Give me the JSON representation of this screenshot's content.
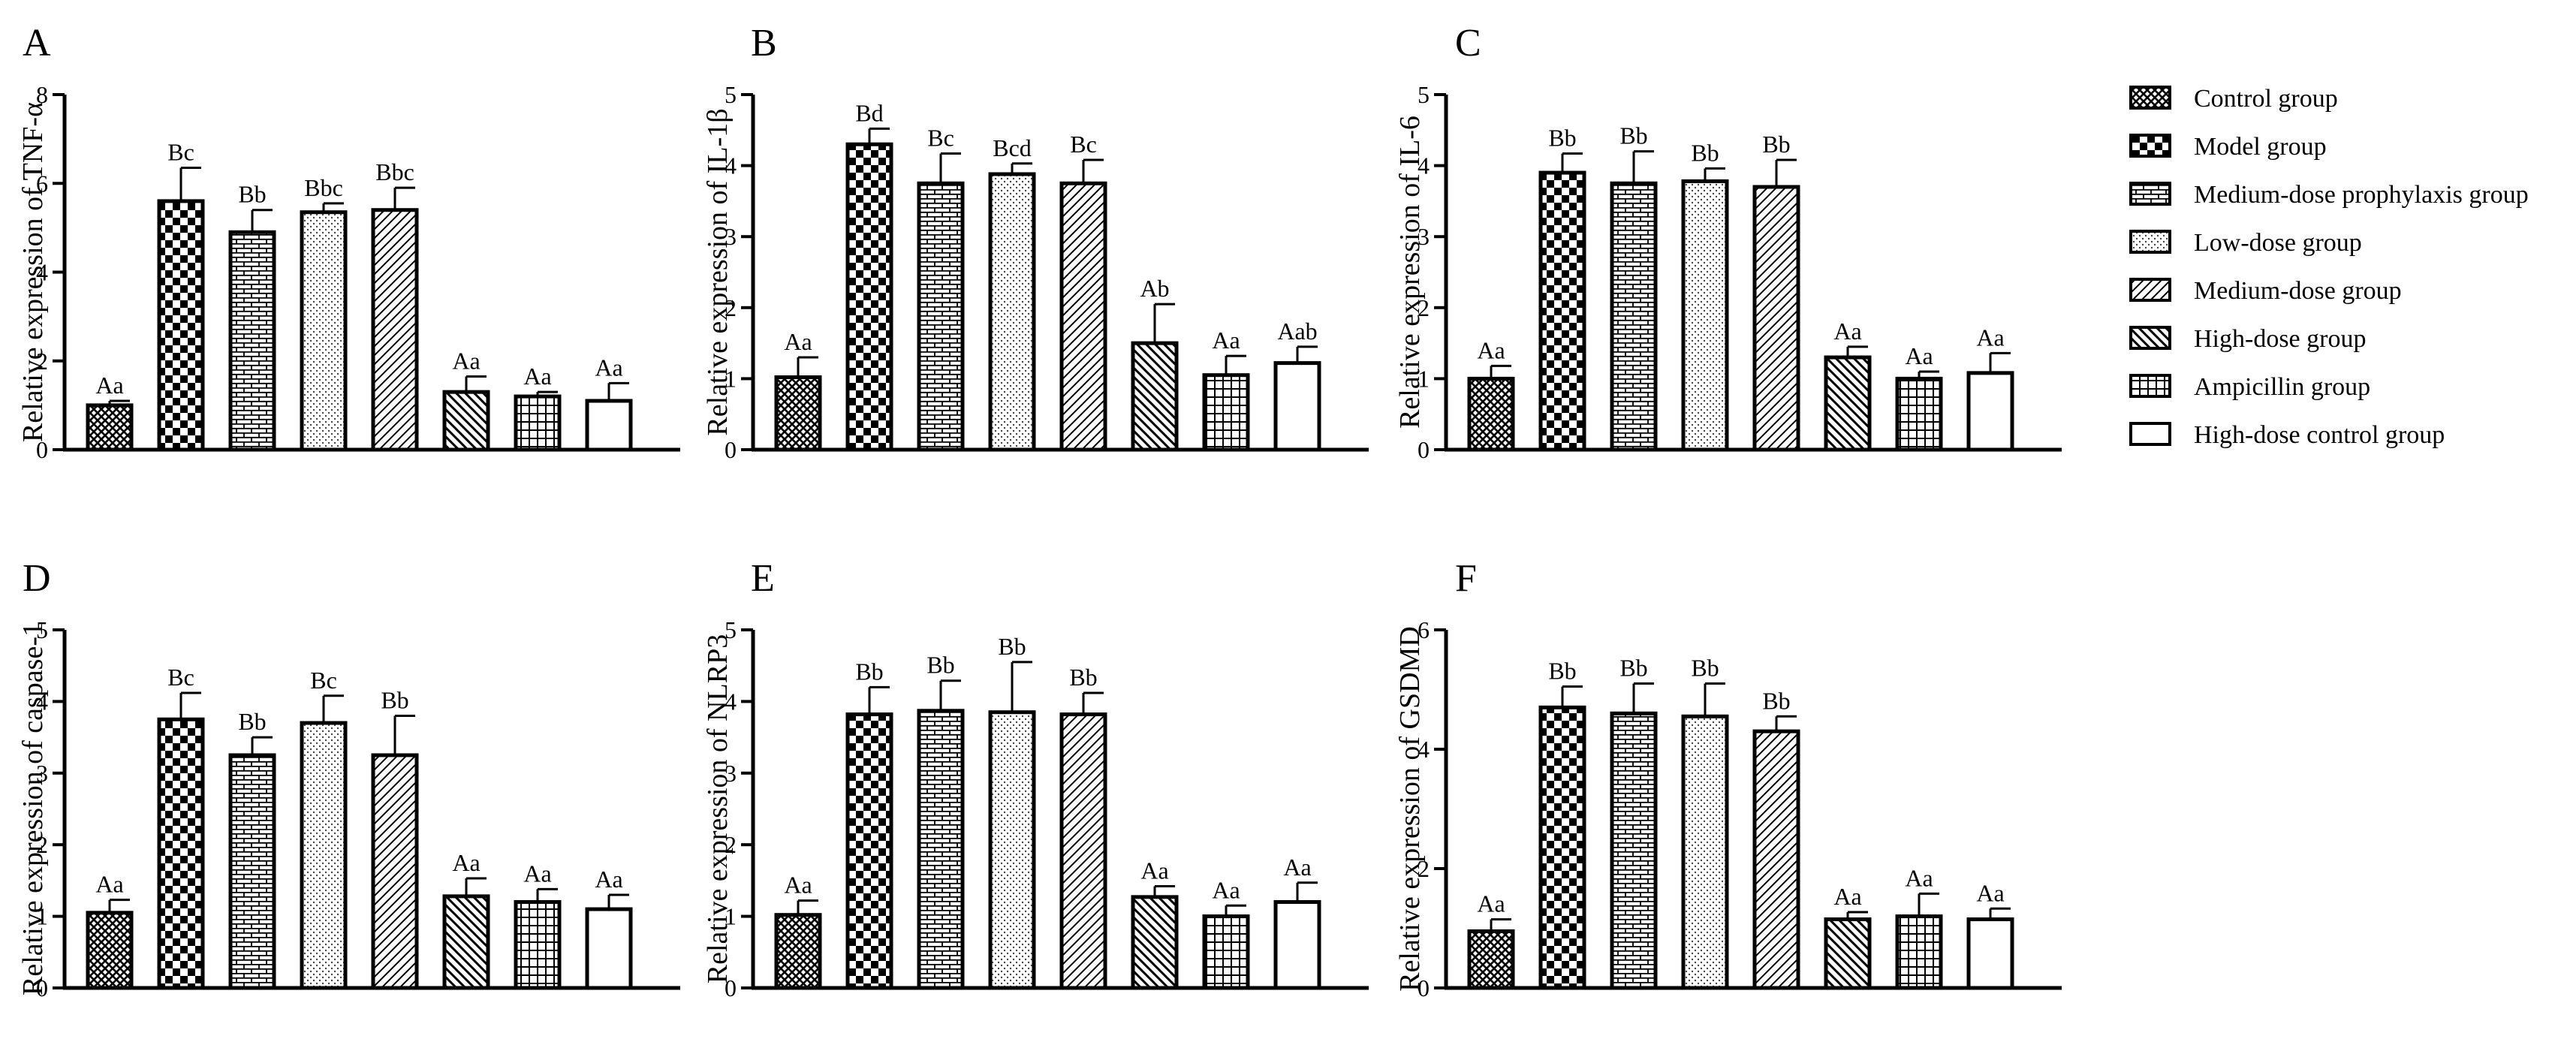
{
  "figure": {
    "legend": {
      "entries": [
        {
          "label": "Control group",
          "pattern": "crosshatch-fine"
        },
        {
          "label": "Model group",
          "pattern": "checker"
        },
        {
          "label": "Medium-dose prophylaxis group",
          "pattern": "brick"
        },
        {
          "label": "Low-dose group",
          "pattern": "dots"
        },
        {
          "label": "Medium-dose group",
          "pattern": "diag-fwd"
        },
        {
          "label": "High-dose group",
          "pattern": "diag-back"
        },
        {
          "label": "Ampicillin group",
          "pattern": "grid"
        },
        {
          "label": "High-dose control group",
          "pattern": "empty"
        }
      ]
    }
  },
  "chart_data": [
    {
      "panel": "A",
      "type": "bar",
      "ylabel": "Relative expression of TNF-α",
      "ylim": [
        0,
        8
      ],
      "yticks": [
        0,
        2,
        4,
        6,
        8
      ],
      "categories": [
        "Control group",
        "Model group",
        "Medium-dose prophylaxis group",
        "Low-dose group",
        "Medium-dose group",
        "High-dose group",
        "Ampicillin group",
        "High-dose control group"
      ],
      "values": [
        1.0,
        5.6,
        4.9,
        5.35,
        5.4,
        1.3,
        1.2,
        1.1
      ],
      "errors": [
        0.1,
        0.75,
        0.5,
        0.2,
        0.5,
        0.35,
        0.1,
        0.4
      ],
      "labels": [
        "Aa",
        "Bc",
        "Bb",
        "Bbc",
        "Bbc",
        "Aa",
        "Aa",
        "Aa"
      ]
    },
    {
      "panel": "B",
      "type": "bar",
      "ylabel": "Relative expression of IL-1β",
      "ylim": [
        0,
        5
      ],
      "yticks": [
        0,
        1,
        2,
        3,
        4,
        5
      ],
      "categories": [
        "Control group",
        "Model group",
        "Medium-dose prophylaxis group",
        "Low-dose group",
        "Medium-dose group",
        "High-dose group",
        "Ampicillin group",
        "High-dose control group"
      ],
      "values": [
        1.02,
        4.3,
        3.75,
        3.88,
        3.75,
        1.5,
        1.05,
        1.22
      ],
      "errors": [
        0.28,
        0.22,
        0.42,
        0.15,
        0.33,
        0.55,
        0.27,
        0.23
      ],
      "labels": [
        "Aa",
        "Bd",
        "Bc",
        "Bcd",
        "Bc",
        "Ab",
        "Aa",
        "Aab"
      ]
    },
    {
      "panel": "C",
      "type": "bar",
      "ylabel": "Relative expression of IL-6",
      "ylim": [
        0,
        5
      ],
      "yticks": [
        0,
        1,
        2,
        3,
        4,
        5
      ],
      "categories": [
        "Control group",
        "Model group",
        "Medium-dose prophylaxis group",
        "Low-dose group",
        "Medium-dose group",
        "High-dose group",
        "Ampicillin group",
        "High-dose control group"
      ],
      "values": [
        1.0,
        3.9,
        3.75,
        3.78,
        3.7,
        1.3,
        1.0,
        1.08
      ],
      "errors": [
        0.18,
        0.27,
        0.45,
        0.18,
        0.38,
        0.15,
        0.1,
        0.28
      ],
      "labels": [
        "Aa",
        "Bb",
        "Bb",
        "Bb",
        "Bb",
        "Aa",
        "Aa",
        "Aa"
      ]
    },
    {
      "panel": "D",
      "type": "bar",
      "ylabel": "Relative expression of caspase-1",
      "ylim": [
        0,
        5
      ],
      "yticks": [
        0,
        1,
        2,
        3,
        4,
        5
      ],
      "categories": [
        "Control group",
        "Model group",
        "Medium-dose prophylaxis group",
        "Low-dose group",
        "Medium-dose group",
        "High-dose group",
        "Ampicillin group",
        "High-dose control group"
      ],
      "values": [
        1.05,
        3.75,
        3.25,
        3.7,
        3.25,
        1.28,
        1.2,
        1.1
      ],
      "errors": [
        0.18,
        0.37,
        0.25,
        0.38,
        0.55,
        0.25,
        0.18,
        0.2
      ],
      "labels": [
        "Aa",
        "Bc",
        "Bb",
        "Bc",
        "Bb",
        "Aa",
        "Aa",
        "Aa"
      ]
    },
    {
      "panel": "E",
      "type": "bar",
      "ylabel": "Relative expression of NLRP3",
      "ylim": [
        0,
        5
      ],
      "yticks": [
        0,
        1,
        2,
        3,
        4,
        5
      ],
      "categories": [
        "Control group",
        "Model group",
        "Medium-dose prophylaxis group",
        "Low-dose group",
        "Medium-dose group",
        "High-dose group",
        "Ampicillin group",
        "High-dose control group"
      ],
      "values": [
        1.02,
        3.82,
        3.87,
        3.85,
        3.82,
        1.27,
        1.0,
        1.2
      ],
      "errors": [
        0.2,
        0.38,
        0.42,
        0.7,
        0.3,
        0.15,
        0.15,
        0.27
      ],
      "labels": [
        "Aa",
        "Bb",
        "Bb",
        "Bb",
        "Bb",
        "Aa",
        "Aa",
        "Aa"
      ]
    },
    {
      "panel": "F",
      "type": "bar",
      "ylabel": "Relative expression of GSDMD",
      "ylim": [
        0,
        6
      ],
      "yticks": [
        0,
        2,
        4,
        6
      ],
      "categories": [
        "Control group",
        "Model group",
        "Medium-dose prophylaxis group",
        "Low-dose group",
        "Medium-dose group",
        "High-dose group",
        "Ampicillin group",
        "High-dose control group"
      ],
      "values": [
        0.95,
        4.7,
        4.6,
        4.55,
        4.3,
        1.15,
        1.2,
        1.15
      ],
      "errors": [
        0.2,
        0.35,
        0.5,
        0.55,
        0.25,
        0.12,
        0.38,
        0.18
      ],
      "labels": [
        "Aa",
        "Bb",
        "Bb",
        "Bb",
        "Bb",
        "Aa",
        "Aa",
        "Aa"
      ]
    }
  ]
}
